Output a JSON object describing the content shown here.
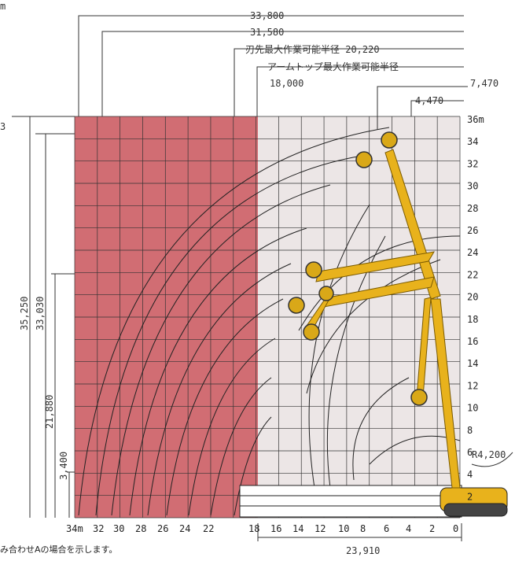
{
  "diagram": {
    "dimensions": {
      "d1": "33,800",
      "d2": "31,580",
      "d3": "刃先最大作業可能半径 20,220",
      "d4": "アームトップ最大作業可能半径",
      "d4b": "18,000",
      "d5": "7,470",
      "d6": "4,470",
      "r": "R4,200",
      "bottom": "23,910",
      "v1": "35,250",
      "v2": "33,030",
      "v3": "21,880",
      "v4": "3,400",
      "top_left_m": "m",
      "top_left_digit": "3"
    },
    "y_axis_labels": [
      "36m",
      "34",
      "32",
      "30",
      "28",
      "26",
      "24",
      "22",
      "20",
      "18",
      "16",
      "14",
      "12",
      "10",
      "8",
      "6",
      "4",
      "2"
    ],
    "x_axis_labels": [
      "34m",
      "32",
      "30",
      "28",
      "26",
      "24",
      "22",
      "18",
      "16",
      "14",
      "12",
      "10",
      "8",
      "6",
      "4",
      "2",
      "0"
    ],
    "footnote": "み合わせAの場合を示します。",
    "colors": {
      "danger_zone": "#c9545a",
      "safe_zone": "#ece6e6",
      "boom": "#e8b21c",
      "grid": "#333333"
    }
  }
}
